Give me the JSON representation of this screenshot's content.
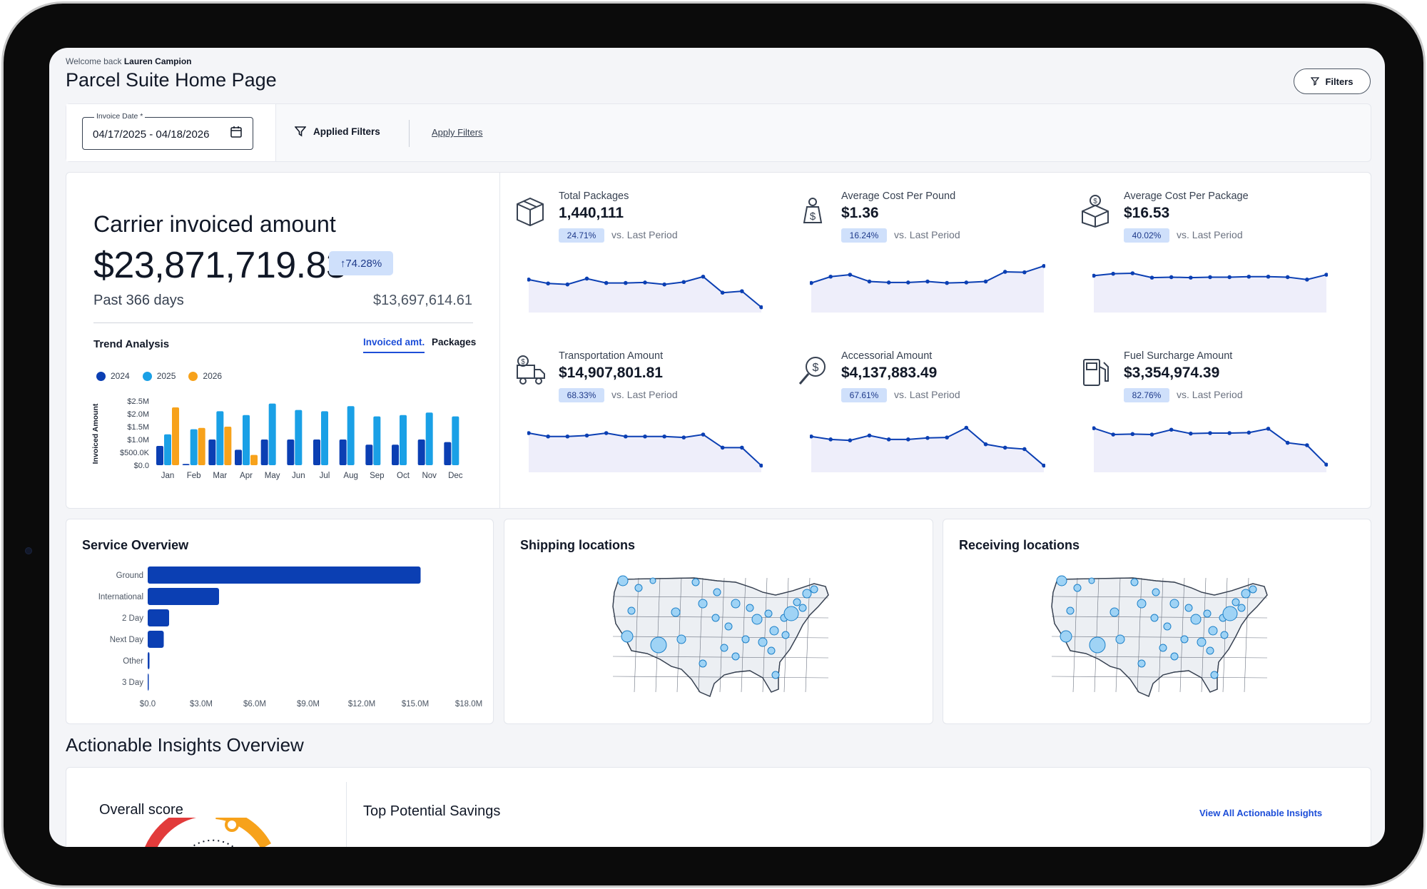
{
  "header": {
    "welcome_prefix": "Welcome back",
    "user_name": "Lauren Campion",
    "title": "Parcel Suite Home Page",
    "filters_button": "Filters"
  },
  "filter_bar": {
    "invoice_date_label": "Invoice Date *",
    "invoice_date_value": "04/17/2025 - 04/18/2026",
    "applied_filters": "Applied Filters",
    "apply_filters_link": "Apply Filters"
  },
  "carrier_invoiced": {
    "title": "Carrier invoiced amount",
    "amount": "$23,871,719.83",
    "change": "↑74.28%",
    "period": "Past 366 days",
    "previous_amount": "$13,697,614.61"
  },
  "trend": {
    "title": "Trend Analysis",
    "tab_active": "Invoiced amt.",
    "tab_inactive": "Packages"
  },
  "metrics": [
    {
      "label": "Total Packages",
      "value": "1,440,111",
      "change": "24.71%",
      "vs": "vs. Last Period",
      "icon": "package-icon",
      "trend": [
        0.62,
        0.54,
        0.52,
        0.64,
        0.55,
        0.55,
        0.56,
        0.52,
        0.57,
        0.68,
        0.35,
        0.38,
        0.05
      ]
    },
    {
      "label": "Average Cost Per Pound",
      "value": "$1.36",
      "change": "16.24%",
      "vs": "vs. Last Period",
      "icon": "money-bag-icon",
      "trend": [
        0.55,
        0.68,
        0.72,
        0.58,
        0.56,
        0.56,
        0.58,
        0.55,
        0.56,
        0.58,
        0.78,
        0.77,
        0.9
      ]
    },
    {
      "label": "Average Cost Per Package",
      "value": "$16.53",
      "change": "40.02%",
      "vs": "vs. Last Period",
      "icon": "dollar-box-icon",
      "trend": [
        0.7,
        0.74,
        0.75,
        0.66,
        0.67,
        0.66,
        0.67,
        0.67,
        0.68,
        0.68,
        0.67,
        0.62,
        0.72
      ]
    },
    {
      "label": "Transportation Amount",
      "value": "$14,907,801.81",
      "change": "68.33%",
      "vs": "vs. Last Period",
      "icon": "delivery-truck-icon",
      "trend": [
        0.75,
        0.68,
        0.68,
        0.7,
        0.75,
        0.68,
        0.68,
        0.68,
        0.66,
        0.72,
        0.45,
        0.45,
        0.08
      ]
    },
    {
      "label": "Accessorial Amount",
      "value": "$4,137,883.49",
      "change": "67.61%",
      "vs": "vs. Last Period",
      "icon": "search-dollar-icon",
      "trend": [
        0.68,
        0.62,
        0.6,
        0.7,
        0.62,
        0.62,
        0.65,
        0.66,
        0.86,
        0.52,
        0.45,
        0.42,
        0.08
      ]
    },
    {
      "label": "Fuel Surcharge Amount",
      "value": "$3,354,974.39",
      "change": "82.76%",
      "vs": "vs. Last Period",
      "icon": "fuel-pump-icon",
      "trend": [
        0.85,
        0.72,
        0.73,
        0.72,
        0.82,
        0.74,
        0.75,
        0.75,
        0.76,
        0.84,
        0.55,
        0.5,
        0.1
      ]
    }
  ],
  "service_overview": {
    "title": "Service Overview"
  },
  "shipping": {
    "title": "Shipping locations"
  },
  "receiving": {
    "title": "Receiving locations"
  },
  "insights": {
    "title": "Actionable Insights Overview",
    "overall_score": "Overall score",
    "top_savings": "Top Potential Savings",
    "view_all": "View All Actionable Insights"
  },
  "colors": {
    "series_2024": "#0b3fb3",
    "series_2025": "#1aa0e6",
    "series_2026": "#f7a21b",
    "accent": "#1d4ed8"
  },
  "chart_data": [
    {
      "type": "bar",
      "title": "Trend Analysis",
      "ylabel": "Invoiced Amount",
      "categories": [
        "Jan",
        "Feb",
        "Mar",
        "Apr",
        "May",
        "Jun",
        "Jul",
        "Aug",
        "Sep",
        "Oct",
        "Nov",
        "Dec"
      ],
      "yticks": [
        "$0.0",
        "$500.0K",
        "$1.0M",
        "$1.5M",
        "$2.0M",
        "$2.5M"
      ],
      "ylim": [
        0,
        2500000
      ],
      "series": [
        {
          "name": "2024",
          "values": [
            750000,
            50000,
            1000000,
            600000,
            1000000,
            1000000,
            1000000,
            1000000,
            800000,
            800000,
            1000000,
            900000
          ]
        },
        {
          "name": "2025",
          "values": [
            1200000,
            1400000,
            2100000,
            1950000,
            2400000,
            2150000,
            2100000,
            2300000,
            1900000,
            1950000,
            2050000,
            1900000
          ]
        },
        {
          "name": "2026",
          "values": [
            2250000,
            1450000,
            1500000,
            400000,
            null,
            null,
            null,
            null,
            null,
            null,
            null,
            null
          ]
        }
      ],
      "legend": "top-left"
    },
    {
      "type": "bar",
      "title": "Service Overview",
      "orientation": "horizontal",
      "categories": [
        "Ground",
        "International",
        "2 Day",
        "Next Day",
        "Other",
        "3 Day"
      ],
      "values": [
        15300000,
        4000000,
        1200000,
        900000,
        100000,
        20000
      ],
      "xticks": [
        "$0.0",
        "$3.0M",
        "$6.0M",
        "$9.0M",
        "$12.0M",
        "$15.0M",
        "$18.0M"
      ],
      "xlim": [
        0,
        18000000
      ]
    }
  ]
}
